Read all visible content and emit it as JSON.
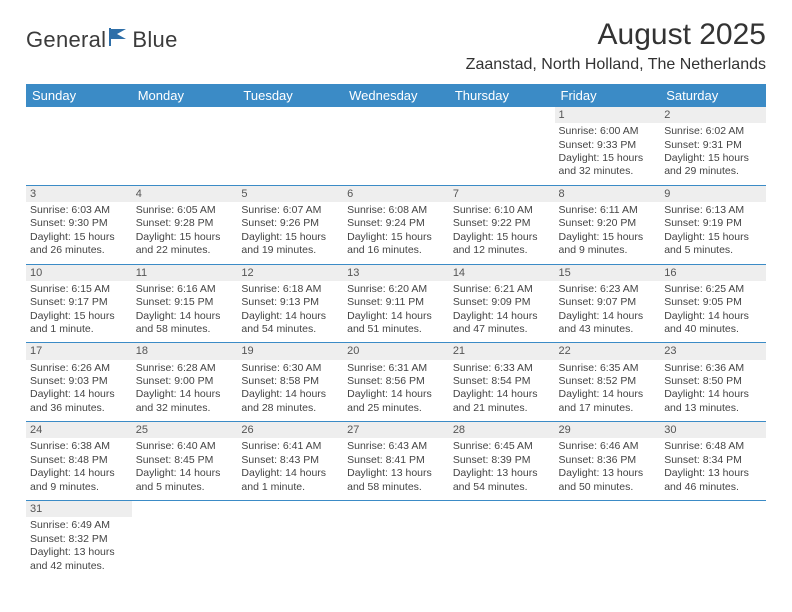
{
  "header": {
    "logo_text_a": "General",
    "logo_text_b": "Blue",
    "month_title": "August 2025",
    "location": "Zaanstad, North Holland, The Netherlands"
  },
  "style": {
    "header_bg": "#3b8bc6",
    "header_fg": "#ffffff",
    "daynum_bg": "#eeeeee",
    "border_color": "#3b8bc6",
    "logo_color": "#2f6fa8"
  },
  "calendar": {
    "type": "table",
    "columns": [
      "Sunday",
      "Monday",
      "Tuesday",
      "Wednesday",
      "Thursday",
      "Friday",
      "Saturday"
    ],
    "weeks": [
      [
        null,
        null,
        null,
        null,
        null,
        {
          "n": "1",
          "sr": "Sunrise: 6:00 AM",
          "ss": "Sunset: 9:33 PM",
          "dl": "Daylight: 15 hours and 32 minutes."
        },
        {
          "n": "2",
          "sr": "Sunrise: 6:02 AM",
          "ss": "Sunset: 9:31 PM",
          "dl": "Daylight: 15 hours and 29 minutes."
        }
      ],
      [
        {
          "n": "3",
          "sr": "Sunrise: 6:03 AM",
          "ss": "Sunset: 9:30 PM",
          "dl": "Daylight: 15 hours and 26 minutes."
        },
        {
          "n": "4",
          "sr": "Sunrise: 6:05 AM",
          "ss": "Sunset: 9:28 PM",
          "dl": "Daylight: 15 hours and 22 minutes."
        },
        {
          "n": "5",
          "sr": "Sunrise: 6:07 AM",
          "ss": "Sunset: 9:26 PM",
          "dl": "Daylight: 15 hours and 19 minutes."
        },
        {
          "n": "6",
          "sr": "Sunrise: 6:08 AM",
          "ss": "Sunset: 9:24 PM",
          "dl": "Daylight: 15 hours and 16 minutes."
        },
        {
          "n": "7",
          "sr": "Sunrise: 6:10 AM",
          "ss": "Sunset: 9:22 PM",
          "dl": "Daylight: 15 hours and 12 minutes."
        },
        {
          "n": "8",
          "sr": "Sunrise: 6:11 AM",
          "ss": "Sunset: 9:20 PM",
          "dl": "Daylight: 15 hours and 9 minutes."
        },
        {
          "n": "9",
          "sr": "Sunrise: 6:13 AM",
          "ss": "Sunset: 9:19 PM",
          "dl": "Daylight: 15 hours and 5 minutes."
        }
      ],
      [
        {
          "n": "10",
          "sr": "Sunrise: 6:15 AM",
          "ss": "Sunset: 9:17 PM",
          "dl": "Daylight: 15 hours and 1 minute."
        },
        {
          "n": "11",
          "sr": "Sunrise: 6:16 AM",
          "ss": "Sunset: 9:15 PM",
          "dl": "Daylight: 14 hours and 58 minutes."
        },
        {
          "n": "12",
          "sr": "Sunrise: 6:18 AM",
          "ss": "Sunset: 9:13 PM",
          "dl": "Daylight: 14 hours and 54 minutes."
        },
        {
          "n": "13",
          "sr": "Sunrise: 6:20 AM",
          "ss": "Sunset: 9:11 PM",
          "dl": "Daylight: 14 hours and 51 minutes."
        },
        {
          "n": "14",
          "sr": "Sunrise: 6:21 AM",
          "ss": "Sunset: 9:09 PM",
          "dl": "Daylight: 14 hours and 47 minutes."
        },
        {
          "n": "15",
          "sr": "Sunrise: 6:23 AM",
          "ss": "Sunset: 9:07 PM",
          "dl": "Daylight: 14 hours and 43 minutes."
        },
        {
          "n": "16",
          "sr": "Sunrise: 6:25 AM",
          "ss": "Sunset: 9:05 PM",
          "dl": "Daylight: 14 hours and 40 minutes."
        }
      ],
      [
        {
          "n": "17",
          "sr": "Sunrise: 6:26 AM",
          "ss": "Sunset: 9:03 PM",
          "dl": "Daylight: 14 hours and 36 minutes."
        },
        {
          "n": "18",
          "sr": "Sunrise: 6:28 AM",
          "ss": "Sunset: 9:00 PM",
          "dl": "Daylight: 14 hours and 32 minutes."
        },
        {
          "n": "19",
          "sr": "Sunrise: 6:30 AM",
          "ss": "Sunset: 8:58 PM",
          "dl": "Daylight: 14 hours and 28 minutes."
        },
        {
          "n": "20",
          "sr": "Sunrise: 6:31 AM",
          "ss": "Sunset: 8:56 PM",
          "dl": "Daylight: 14 hours and 25 minutes."
        },
        {
          "n": "21",
          "sr": "Sunrise: 6:33 AM",
          "ss": "Sunset: 8:54 PM",
          "dl": "Daylight: 14 hours and 21 minutes."
        },
        {
          "n": "22",
          "sr": "Sunrise: 6:35 AM",
          "ss": "Sunset: 8:52 PM",
          "dl": "Daylight: 14 hours and 17 minutes."
        },
        {
          "n": "23",
          "sr": "Sunrise: 6:36 AM",
          "ss": "Sunset: 8:50 PM",
          "dl": "Daylight: 14 hours and 13 minutes."
        }
      ],
      [
        {
          "n": "24",
          "sr": "Sunrise: 6:38 AM",
          "ss": "Sunset: 8:48 PM",
          "dl": "Daylight: 14 hours and 9 minutes."
        },
        {
          "n": "25",
          "sr": "Sunrise: 6:40 AM",
          "ss": "Sunset: 8:45 PM",
          "dl": "Daylight: 14 hours and 5 minutes."
        },
        {
          "n": "26",
          "sr": "Sunrise: 6:41 AM",
          "ss": "Sunset: 8:43 PM",
          "dl": "Daylight: 14 hours and 1 minute."
        },
        {
          "n": "27",
          "sr": "Sunrise: 6:43 AM",
          "ss": "Sunset: 8:41 PM",
          "dl": "Daylight: 13 hours and 58 minutes."
        },
        {
          "n": "28",
          "sr": "Sunrise: 6:45 AM",
          "ss": "Sunset: 8:39 PM",
          "dl": "Daylight: 13 hours and 54 minutes."
        },
        {
          "n": "29",
          "sr": "Sunrise: 6:46 AM",
          "ss": "Sunset: 8:36 PM",
          "dl": "Daylight: 13 hours and 50 minutes."
        },
        {
          "n": "30",
          "sr": "Sunrise: 6:48 AM",
          "ss": "Sunset: 8:34 PM",
          "dl": "Daylight: 13 hours and 46 minutes."
        }
      ],
      [
        {
          "n": "31",
          "sr": "Sunrise: 6:49 AM",
          "ss": "Sunset: 8:32 PM",
          "dl": "Daylight: 13 hours and 42 minutes."
        },
        null,
        null,
        null,
        null,
        null,
        null
      ]
    ]
  }
}
